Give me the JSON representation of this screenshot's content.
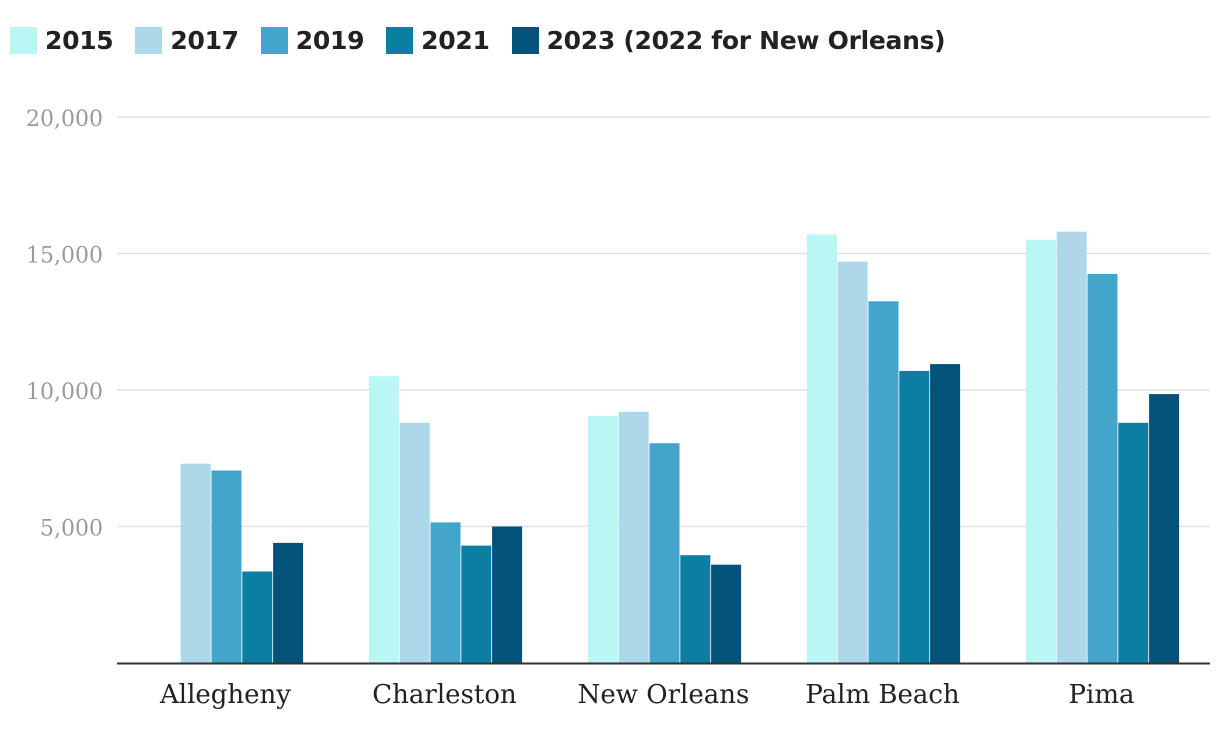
{
  "chart_data": {
    "type": "bar",
    "title": "",
    "xlabel": "",
    "ylabel": "",
    "ylim": [
      0,
      20000
    ],
    "yticks": [
      {
        "value": 5000,
        "label": "5,000"
      },
      {
        "value": 10000,
        "label": "10,000"
      },
      {
        "value": 15000,
        "label": "15,000"
      },
      {
        "value": 20000,
        "label": "20,000"
      }
    ],
    "grid": true,
    "legend_position": "top-left",
    "categories": [
      "Allegheny",
      "Charleston",
      "New Orleans",
      "Palm Beach",
      "Pima"
    ],
    "series": [
      {
        "name": "2015",
        "color": "#b9f6f4",
        "values": [
          null,
          10500,
          9050,
          15700,
          15500
        ]
      },
      {
        "name": "2017",
        "color": "#acd8ea",
        "values": [
          7300,
          8800,
          9200,
          14700,
          15800
        ]
      },
      {
        "name": "2019",
        "color": "#43a5cb",
        "values": [
          7050,
          5150,
          8050,
          13250,
          14250
        ]
      },
      {
        "name": "2021",
        "color": "#0b7ea2",
        "values": [
          3350,
          4300,
          3950,
          10700,
          8800
        ]
      },
      {
        "name": "2023 (2022 for New Orleans)",
        "color": "#03527a",
        "values": [
          4400,
          5000,
          3600,
          10950,
          9850
        ]
      }
    ]
  }
}
